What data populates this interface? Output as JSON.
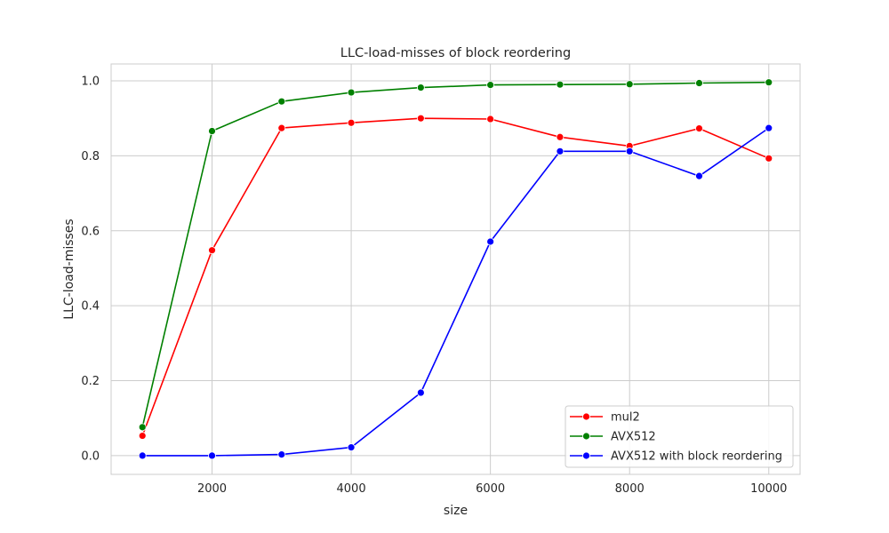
{
  "chart_data": {
    "type": "line",
    "title": "LLC-load-misses of block reordering",
    "xlabel": "size",
    "ylabel": "LLC-load-misses",
    "xlim": [
      550,
      10450
    ],
    "ylim": [
      -0.05,
      1.045
    ],
    "xticks": [
      2000,
      4000,
      6000,
      8000,
      10000
    ],
    "xtick_labels": [
      "2000",
      "4000",
      "6000",
      "8000",
      "10000"
    ],
    "yticks": [
      0.0,
      0.2,
      0.4,
      0.6,
      0.8,
      1.0
    ],
    "ytick_labels": [
      "0.0",
      "0.2",
      "0.4",
      "0.6",
      "0.8",
      "1.0"
    ],
    "grid": true,
    "legend_position": "lower-right",
    "x": [
      1000,
      2000,
      3000,
      4000,
      5000,
      6000,
      7000,
      8000,
      9000,
      10000
    ],
    "series": [
      {
        "name": "mul2",
        "color": "#ff0000",
        "values": [
          0.053,
          0.548,
          0.874,
          0.888,
          0.9,
          0.898,
          0.85,
          0.826,
          0.873,
          0.793
        ]
      },
      {
        "name": "AVX512",
        "color": "#008000",
        "values": [
          0.076,
          0.866,
          0.945,
          0.969,
          0.982,
          0.989,
          0.99,
          0.991,
          0.994,
          0.996
        ]
      },
      {
        "name": "AVX512 with block reordering",
        "color": "#0000ff",
        "values": [
          0.0,
          0.0,
          0.003,
          0.022,
          0.168,
          0.571,
          0.812,
          0.812,
          0.746,
          0.874
        ]
      }
    ]
  }
}
